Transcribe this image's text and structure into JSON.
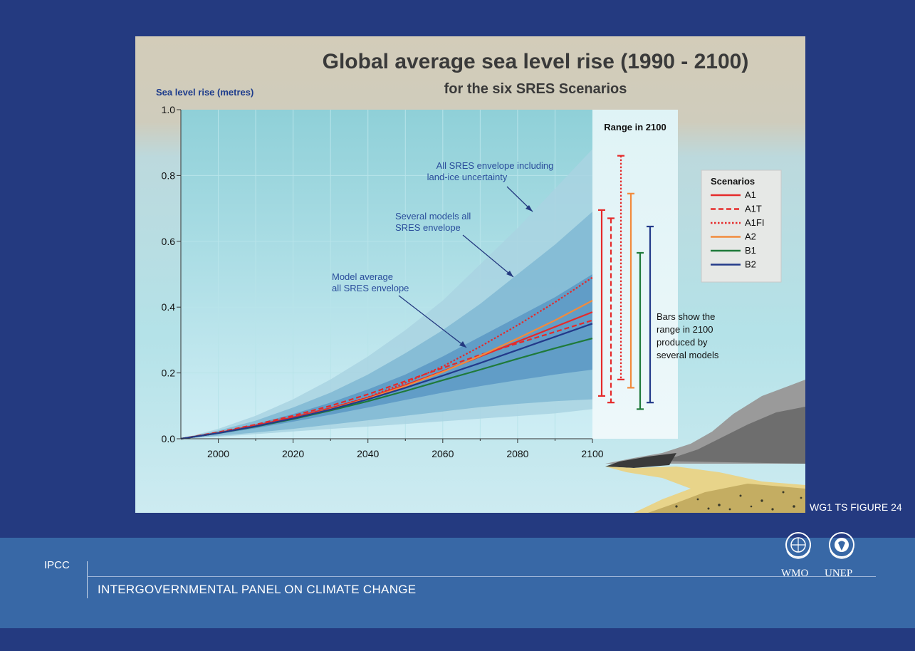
{
  "chart_data": {
    "type": "line",
    "title": "Global average sea level rise (1990 - 2100)",
    "subtitle": "for the six SRES Scenarios",
    "ylabel": "Sea level rise (metres)",
    "xlabel": "",
    "xlim": [
      1990,
      2100
    ],
    "ylim": [
      0.0,
      1.0
    ],
    "x_ticks": [
      2000,
      2020,
      2040,
      2060,
      2080,
      2100
    ],
    "y_ticks": [
      0.0,
      0.2,
      0.4,
      0.6,
      0.8,
      1.0
    ],
    "grid": true,
    "x": [
      1990,
      2000,
      2010,
      2020,
      2030,
      2040,
      2050,
      2060,
      2070,
      2080,
      2090,
      2100
    ],
    "series": [
      {
        "name": "A1",
        "color": "#e52a2a",
        "dash": "solid",
        "values": [
          0.0,
          0.018,
          0.04,
          0.065,
          0.093,
          0.125,
          0.163,
          0.205,
          0.25,
          0.295,
          0.34,
          0.385
        ]
      },
      {
        "name": "A1T",
        "color": "#e52a2a",
        "dash": "dashed",
        "values": [
          0.0,
          0.02,
          0.043,
          0.07,
          0.1,
          0.135,
          0.175,
          0.215,
          0.255,
          0.29,
          0.325,
          0.36
        ]
      },
      {
        "name": "A1FI",
        "color": "#e52a2a",
        "dash": "dotted",
        "values": [
          0.0,
          0.018,
          0.04,
          0.065,
          0.093,
          0.126,
          0.17,
          0.22,
          0.28,
          0.345,
          0.415,
          0.49
        ]
      },
      {
        "name": "A2",
        "color": "#f28a3c",
        "dash": "solid",
        "values": [
          0.0,
          0.017,
          0.038,
          0.062,
          0.09,
          0.122,
          0.16,
          0.203,
          0.252,
          0.305,
          0.36,
          0.42
        ]
      },
      {
        "name": "B1",
        "color": "#1f7a3a",
        "dash": "solid",
        "values": [
          0.0,
          0.017,
          0.037,
          0.06,
          0.086,
          0.114,
          0.145,
          0.178,
          0.21,
          0.243,
          0.275,
          0.305
        ]
      },
      {
        "name": "B2",
        "color": "#233a8a",
        "dash": "solid",
        "values": [
          0.0,
          0.017,
          0.038,
          0.062,
          0.089,
          0.12,
          0.155,
          0.192,
          0.23,
          0.27,
          0.31,
          0.35
        ]
      }
    ],
    "envelopes": [
      {
        "label": "All SRES envelope including land-ice uncertainty",
        "color": "#a9d4e2",
        "x": [
          1990,
          2000,
          2010,
          2020,
          2030,
          2040,
          2050,
          2060,
          2070,
          2080,
          2090,
          2100
        ],
        "upper": [
          0.0,
          0.03,
          0.07,
          0.12,
          0.18,
          0.25,
          0.33,
          0.42,
          0.53,
          0.64,
          0.76,
          0.88
        ],
        "lower": [
          0.0,
          0.006,
          0.014,
          0.022,
          0.03,
          0.037,
          0.045,
          0.053,
          0.061,
          0.069,
          0.077,
          0.09
        ]
      },
      {
        "label": "Several models all SRES envelope",
        "color": "#80b8d4",
        "x": [
          1990,
          2000,
          2010,
          2020,
          2030,
          2040,
          2050,
          2060,
          2070,
          2080,
          2090,
          2100
        ],
        "upper": [
          0.0,
          0.025,
          0.055,
          0.095,
          0.14,
          0.195,
          0.26,
          0.33,
          0.41,
          0.5,
          0.59,
          0.69
        ],
        "lower": [
          0.0,
          0.009,
          0.019,
          0.03,
          0.043,
          0.056,
          0.07,
          0.083,
          0.096,
          0.106,
          0.114,
          0.12
        ]
      },
      {
        "label": "Model average all SRES envelope",
        "color": "#5b98c4",
        "x": [
          1990,
          2000,
          2010,
          2020,
          2030,
          2040,
          2050,
          2060,
          2070,
          2080,
          2090,
          2100
        ],
        "upper": [
          0.0,
          0.02,
          0.045,
          0.075,
          0.11,
          0.15,
          0.195,
          0.25,
          0.31,
          0.37,
          0.43,
          0.5
        ],
        "lower": [
          0.0,
          0.014,
          0.032,
          0.052,
          0.073,
          0.095,
          0.118,
          0.14,
          0.16,
          0.178,
          0.195,
          0.21
        ]
      }
    ],
    "annotations": {
      "envelope_all_line1": "All SRES envelope including",
      "envelope_all_line2": "land-ice uncertainty",
      "envelope_several_line1": "Several models all",
      "envelope_several_line2": "SRES envelope",
      "envelope_avg_line1": "Model average",
      "envelope_avg_line2": "all SRES envelope"
    },
    "range_2100": {
      "title": "Range in 2100",
      "bars": [
        {
          "name": "A1",
          "color": "#e52a2a",
          "dash": "solid",
          "low": 0.13,
          "high": 0.695
        },
        {
          "name": "A1T",
          "color": "#e52a2a",
          "dash": "dashed",
          "low": 0.11,
          "high": 0.67
        },
        {
          "name": "A1FI",
          "color": "#e52a2a",
          "dash": "dotted",
          "low": 0.18,
          "high": 0.86
        },
        {
          "name": "A2",
          "color": "#f28a3c",
          "dash": "solid",
          "low": 0.155,
          "high": 0.745
        },
        {
          "name": "B1",
          "color": "#1f7a3a",
          "dash": "solid",
          "low": 0.09,
          "high": 0.565
        },
        {
          "name": "B2",
          "color": "#233a8a",
          "dash": "solid",
          "low": 0.11,
          "high": 0.645
        }
      ],
      "note_lines": [
        "Bars show  the",
        "range in 2100",
        "produced by",
        "several models"
      ]
    },
    "legend": {
      "title": "Scenarios",
      "placement": "right",
      "entries": [
        "A1",
        "A1T",
        "A1FI",
        "A2",
        "B1",
        "B2"
      ]
    }
  },
  "figure_label": "WG1 TS FIGURE 24",
  "footer": {
    "ipcc": "IPCC",
    "org_name": "INTERGOVERNMENTAL PANEL ON CLIMATE CHANGE",
    "logo_wmo": "WMO",
    "logo_unep": "UNEP"
  },
  "colors": {
    "background": "#243a80",
    "footer_band": "#3868a6",
    "title_text": "#3a3a3a",
    "axis_label": "#1d3c8c"
  }
}
